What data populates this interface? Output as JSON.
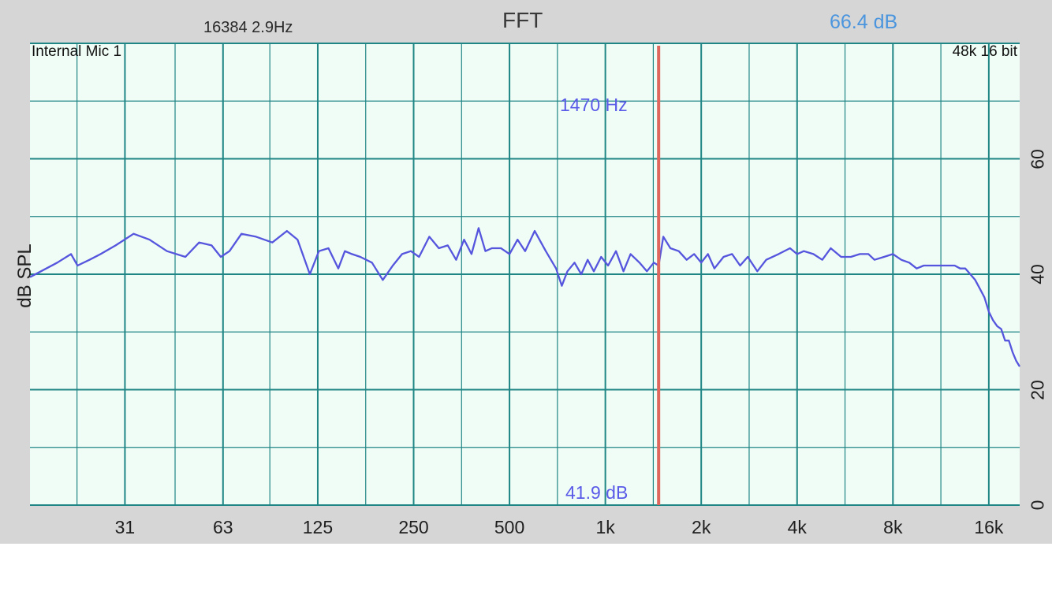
{
  "header": {
    "fft_info": "16384  2.9Hz",
    "title": "FFT",
    "level_readout": "66.4 dB"
  },
  "plot": {
    "input_label": "Internal Mic 1",
    "format_label": "48k 16 bit",
    "cursor_freq_label": "1470 Hz",
    "cursor_level_label": "41.9 dB"
  },
  "colors": {
    "background": "#d6d6d6",
    "plot_background": "#f0fdf6",
    "grid": "#1f8585",
    "trace": "#5555dd",
    "cursor": "#e0675e",
    "level_readout": "#4a95de"
  },
  "chart_data": {
    "type": "line",
    "title": "FFT",
    "xlabel": "",
    "ylabel": "dB SPL",
    "x_scale": "log",
    "x_tick_labels": [
      "31",
      "63",
      "125",
      "250",
      "500",
      "1k",
      "2k",
      "4k",
      "8k",
      "16k"
    ],
    "x_ticks": [
      31,
      63,
      125,
      250,
      500,
      1000,
      2000,
      4000,
      8000,
      16000
    ],
    "xlim": [
      15.6,
      20000
    ],
    "y_tick_labels": [
      "0",
      "20",
      "40",
      "60"
    ],
    "y_ticks": [
      0,
      20,
      40,
      60
    ],
    "ylim": [
      0,
      80
    ],
    "grid": true,
    "cursor": {
      "frequency": 1470,
      "level": 41.9
    },
    "series": [
      {
        "x": [
          15.6,
          19,
          21,
          22,
          24,
          26,
          29,
          33,
          37,
          42,
          48,
          53,
          58,
          62,
          66,
          72,
          80,
          90,
          100,
          108,
          118,
          126,
          135,
          145,
          152,
          160,
          170,
          185,
          200,
          215,
          230,
          245,
          260,
          280,
          300,
          320,
          340,
          360,
          380,
          400,
          420,
          440,
          470,
          500,
          530,
          560,
          600,
          650,
          700,
          730,
          760,
          800,
          840,
          880,
          920,
          970,
          1020,
          1080,
          1140,
          1200,
          1280,
          1350,
          1420,
          1470,
          1520,
          1600,
          1700,
          1800,
          1900,
          2000,
          2100,
          2200,
          2350,
          2500,
          2650,
          2800,
          3000,
          3200,
          3500,
          3800,
          4000,
          4200,
          4500,
          4800,
          5100,
          5500,
          5900,
          6300,
          6700,
          7000,
          7500,
          8000,
          8500,
          9000,
          9500,
          10000,
          10500,
          11000,
          11500,
          12000,
          12500,
          13000,
          13500,
          14000,
          14500,
          15000,
          15500,
          16000,
          16500,
          17000,
          17500,
          18000,
          18500,
          19000,
          19500,
          20000
        ],
        "y": [
          39.5,
          42,
          43.5,
          41.5,
          42.5,
          43.5,
          45,
          47,
          46,
          44,
          43,
          45.5,
          45,
          43,
          44,
          47,
          46.5,
          45.5,
          47.5,
          46,
          40,
          44,
          44.5,
          41,
          44,
          43.5,
          43,
          42,
          39,
          41.5,
          43.5,
          44,
          43,
          46.5,
          44.5,
          45,
          42.5,
          46,
          43.5,
          48,
          44,
          44.5,
          44.5,
          43.5,
          46,
          44,
          47.5,
          44,
          41,
          38,
          40.5,
          42,
          40,
          42.5,
          40.5,
          43,
          41.5,
          44,
          40.5,
          43.5,
          42,
          40.5,
          42,
          41.5,
          46.5,
          44.5,
          44,
          42.5,
          43.5,
          42,
          43.5,
          41,
          43,
          43.5,
          41.5,
          43,
          40.5,
          42.5,
          43.5,
          44.5,
          43.5,
          44,
          43.5,
          42.5,
          44.5,
          43,
          43,
          43.5,
          43.5,
          42.5,
          43,
          43.5,
          42.5,
          42,
          41,
          41.5,
          41.5,
          41.5,
          41.5,
          41.5,
          41.5,
          41,
          41,
          40,
          39,
          37.5,
          36,
          33.5,
          32,
          31,
          30.5,
          28.5,
          28.5,
          26.5,
          25,
          24
        ]
      }
    ]
  }
}
